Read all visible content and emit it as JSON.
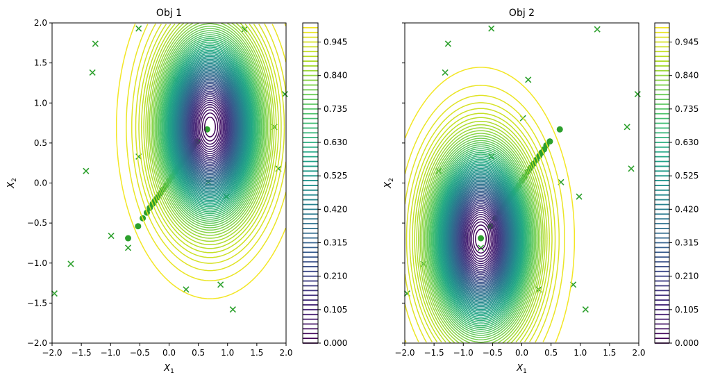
{
  "chart_data": [
    {
      "type": "contour",
      "title": "Obj 1",
      "xlabel": "X",
      "xlabel_sub": "1",
      "ylabel": "X",
      "ylabel_sub": "2",
      "xlim": [
        -2,
        2
      ],
      "ylim": [
        -2,
        2
      ],
      "xticks": [
        "−2.0",
        "−1.5",
        "−1.0",
        "−0.5",
        "0.0",
        "0.5",
        "1.0",
        "1.5",
        "2.0"
      ],
      "yticks": [
        "−2.0",
        "−1.5",
        "−1.0",
        "−0.5",
        "0.0",
        "0.5",
        "1.0",
        "1.5",
        "2.0"
      ],
      "show_ytick_labels": true,
      "optimum": [
        0.7,
        0.7
      ],
      "variance": [
        0.556,
        1.0
      ],
      "level_step": 0.015,
      "level_max": 0.99,
      "colorbar_ticks": [
        "0.000",
        "0.105",
        "0.210",
        "0.315",
        "0.420",
        "0.525",
        "0.630",
        "0.735",
        "0.840",
        "0.945"
      ],
      "colorbar_range": [
        0,
        1.005
      ]
    },
    {
      "type": "contour",
      "title": "Obj 2",
      "xlabel": "X",
      "xlabel_sub": "1",
      "ylabel": "X",
      "ylabel_sub": "2",
      "xlim": [
        -2,
        2
      ],
      "ylim": [
        -2,
        2
      ],
      "xticks": [
        "−2.0",
        "−1.5",
        "−1.0",
        "−0.5",
        "0.0",
        "0.5",
        "1.0",
        "1.5",
        "2.0"
      ],
      "yticks": [
        "−2.0",
        "−1.5",
        "−1.0",
        "−0.5",
        "0.0",
        "0.5",
        "1.0",
        "1.5",
        "2.0"
      ],
      "show_ytick_labels": false,
      "optimum": [
        -0.7,
        -0.7
      ],
      "variance": [
        0.556,
        1.0
      ],
      "level_step": 0.015,
      "level_max": 0.99,
      "colorbar_ticks": [
        "0.000",
        "0.105",
        "0.210",
        "0.315",
        "0.420",
        "0.525",
        "0.630",
        "0.735",
        "0.840",
        "0.945"
      ],
      "colorbar_range": [
        0,
        1.005
      ]
    }
  ],
  "samples": [
    [
      -0.52,
      1.93
    ],
    [
      1.29,
      1.92
    ],
    [
      -1.26,
      1.74
    ],
    [
      -1.31,
      1.38
    ],
    [
      0.11,
      1.29
    ],
    [
      1.98,
      1.11
    ],
    [
      0.02,
      0.81
    ],
    [
      1.8,
      0.7
    ],
    [
      -0.52,
      0.33
    ],
    [
      1.87,
      0.18
    ],
    [
      -1.42,
      0.15
    ],
    [
      0.67,
      0.01
    ],
    [
      0.98,
      -0.17
    ],
    [
      -0.99,
      -0.66
    ],
    [
      -0.7,
      -0.81
    ],
    [
      -1.68,
      -1.01
    ],
    [
      -1.96,
      -1.38
    ],
    [
      0.29,
      -1.33
    ],
    [
      0.88,
      -1.27
    ],
    [
      1.09,
      -1.58
    ]
  ],
  "pareto": [
    [
      -0.7,
      -0.69
    ],
    [
      -0.53,
      -0.54
    ],
    [
      -0.45,
      -0.44
    ],
    [
      -0.38,
      -0.37
    ],
    [
      -0.33,
      -0.31
    ],
    [
      -0.28,
      -0.26
    ],
    [
      -0.24,
      -0.22
    ],
    [
      -0.2,
      -0.18
    ],
    [
      -0.15,
      -0.13
    ],
    [
      -0.1,
      -0.08
    ],
    [
      -0.05,
      -0.03
    ],
    [
      0.0,
      0.03
    ],
    [
      0.05,
      0.08
    ],
    [
      0.1,
      0.14
    ],
    [
      0.15,
      0.19
    ],
    [
      0.2,
      0.24
    ],
    [
      0.25,
      0.29
    ],
    [
      0.3,
      0.34
    ],
    [
      0.34,
      0.38
    ],
    [
      0.38,
      0.42
    ],
    [
      0.42,
      0.47
    ],
    [
      0.48,
      0.52
    ],
    [
      0.65,
      0.67
    ]
  ],
  "colors": {
    "marker": "#2ca02c"
  }
}
